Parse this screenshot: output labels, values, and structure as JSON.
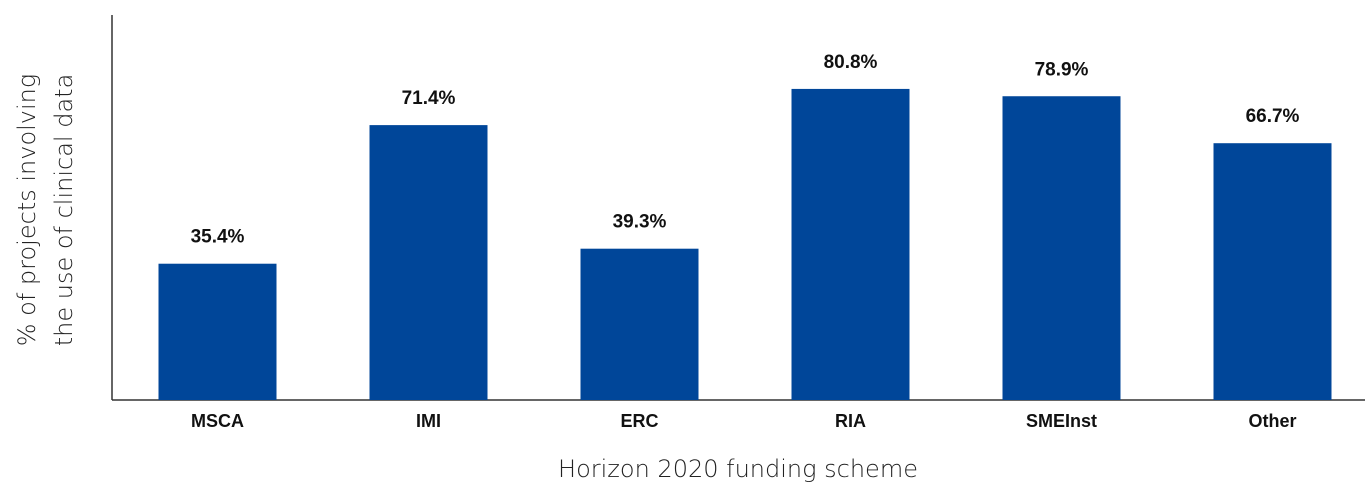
{
  "chart_data": {
    "type": "bar",
    "categories": [
      "MSCA",
      "IMI",
      "ERC",
      "RIA",
      "SMEInst",
      "Other"
    ],
    "values": [
      35.4,
      71.4,
      39.3,
      80.8,
      78.9,
      66.7
    ],
    "value_labels": [
      "35.4%",
      "71.4%",
      "39.3%",
      "80.8%",
      "78.9%",
      "66.7%"
    ],
    "color": "#004699",
    "ylim": [
      0,
      100
    ],
    "x_label": "Horizon 2020 funding scheme",
    "y_label": [
      "% of projects involving",
      "the use of clinical data"
    ]
  }
}
